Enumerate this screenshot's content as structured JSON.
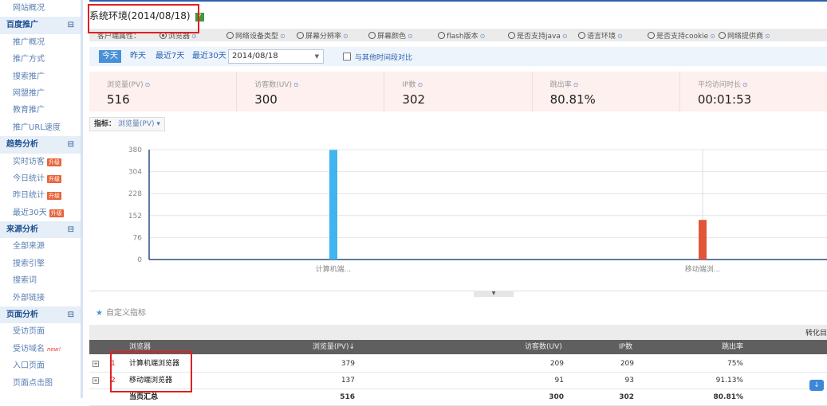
{
  "sidebar": {
    "items": [
      {
        "label": "网站概况",
        "type": "item"
      },
      {
        "label": "百度推广",
        "type": "header",
        "toggle": "⊟"
      },
      {
        "label": "推广概况",
        "type": "item"
      },
      {
        "label": "推广方式",
        "type": "item"
      },
      {
        "label": "搜索推广",
        "type": "item"
      },
      {
        "label": "网盟推广",
        "type": "item"
      },
      {
        "label": "教育推广",
        "type": "item"
      },
      {
        "label": "推广URL速度",
        "type": "item"
      },
      {
        "label": "趋势分析",
        "type": "header",
        "toggle": "⊟"
      },
      {
        "label": "实时访客",
        "type": "item",
        "badge": "升级"
      },
      {
        "label": "今日统计",
        "type": "item",
        "badge": "升级"
      },
      {
        "label": "昨日统计",
        "type": "item",
        "badge": "升级"
      },
      {
        "label": "最近30天",
        "type": "item",
        "badge": "升级"
      },
      {
        "label": "来源分析",
        "type": "header",
        "toggle": "⊟"
      },
      {
        "label": "全部来源",
        "type": "item"
      },
      {
        "label": "搜索引擎",
        "type": "item"
      },
      {
        "label": "搜索词",
        "type": "item"
      },
      {
        "label": "外部链接",
        "type": "item"
      },
      {
        "label": "页面分析",
        "type": "header",
        "toggle": "⊟"
      },
      {
        "label": "受访页面",
        "type": "item"
      },
      {
        "label": "受访域名",
        "type": "item",
        "new": "new!"
      },
      {
        "label": "入口页面",
        "type": "item"
      },
      {
        "label": "页面点击图",
        "type": "item"
      }
    ]
  },
  "header": {
    "title": "系统环境(2014/08/18)",
    "help": "?"
  },
  "attributes": {
    "label": "客户端属性：",
    "options": [
      "浏览器",
      "网络设备类型",
      "屏幕分辨率",
      "屏幕颜色",
      "flash版本",
      "是否支持java",
      "语言环境",
      "是否支持cookie",
      "网络提供商"
    ],
    "selected": "浏览器"
  },
  "datebar": {
    "buttons": [
      "今天",
      "昨天",
      "最近7天",
      "最近30天"
    ],
    "active": "今天",
    "date": "2014/08/18",
    "compare_label": "与其他时间段对比"
  },
  "metrics": [
    {
      "label": "浏览量(PV)",
      "value": "516"
    },
    {
      "label": "访客数(UV)",
      "value": "300"
    },
    {
      "label": "IP数",
      "value": "302"
    },
    {
      "label": "跳出率",
      "value": "80.81%"
    },
    {
      "label": "平均访问时长",
      "value": "00:01:53"
    }
  ],
  "indicator": {
    "label": "指标：",
    "value": "浏览量(PV)"
  },
  "chart_data": {
    "type": "bar",
    "categories": [
      "计算机端...",
      "移动端浏..."
    ],
    "values": [
      379,
      137
    ],
    "colors": [
      "#3fb4ee",
      "#e0563a"
    ],
    "yticks": [
      0,
      76,
      152,
      228,
      304,
      380
    ],
    "ylim": [
      0,
      380
    ],
    "grid": true
  },
  "custom_metrics": "自定义指标",
  "table": {
    "group_header": "转化目",
    "columns": [
      "浏览器",
      "浏览量(PV)",
      "访客数(UV)",
      "IP数",
      "跳出率"
    ],
    "sort_icon": "↓",
    "rows": [
      {
        "index": "1",
        "name": "计算机端浏览器",
        "pv": "379",
        "uv": "209",
        "ip": "209",
        "bounce": "75%"
      },
      {
        "index": "2",
        "name": "移动端浏览器",
        "pv": "137",
        "uv": "91",
        "ip": "93",
        "bounce": "91.13%"
      }
    ],
    "total": {
      "name": "当页汇总",
      "pv": "516",
      "uv": "300",
      "ip": "302",
      "bounce": "80.81%"
    }
  }
}
